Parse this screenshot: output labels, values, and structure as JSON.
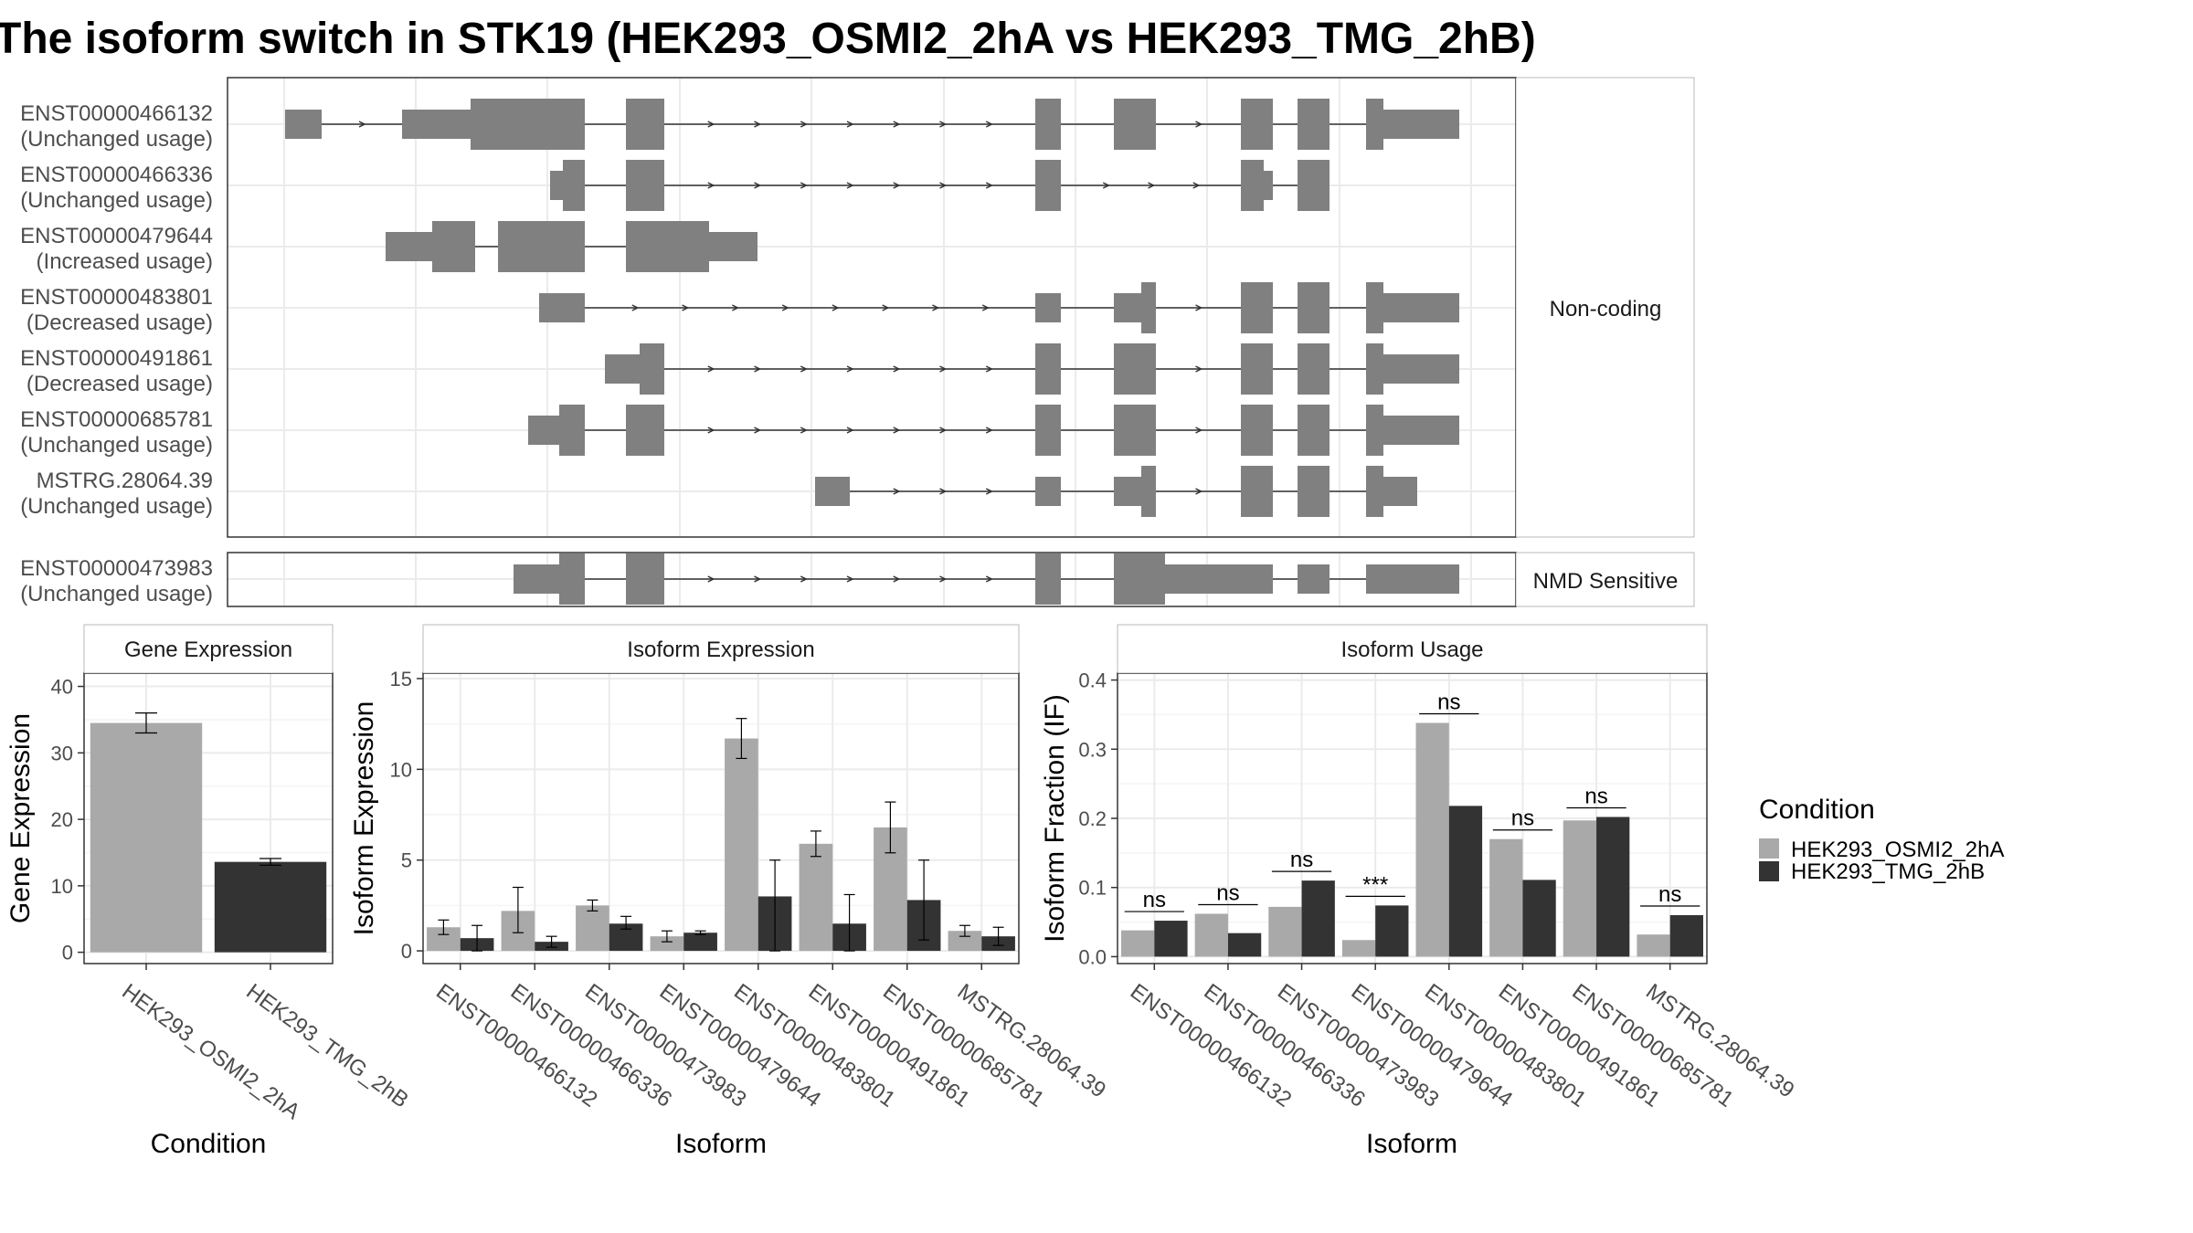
{
  "title": "The isoform switch in STK19 (HEK293_OSMI2_2hA vs HEK293_TMG_2hB)",
  "colors": {
    "exon": "#808080",
    "cond1": "#a9a9a9",
    "cond2": "#333333",
    "grid": "#ebebeb",
    "strip": "#f2f2f2",
    "panel_border": "#333333"
  },
  "structure": {
    "groups": [
      {
        "label": "Non-coding",
        "transcripts": [
          {
            "id": "ENST00000466132",
            "usage": "(Unchanged usage)"
          },
          {
            "id": "ENST00000466336",
            "usage": "(Unchanged usage)"
          },
          {
            "id": "ENST00000479644",
            "usage": "(Increased usage)"
          },
          {
            "id": "ENST00000483801",
            "usage": "(Decreased usage)"
          },
          {
            "id": "ENST00000491861",
            "usage": "(Decreased usage)"
          },
          {
            "id": "ENST00000685781",
            "usage": "(Unchanged usage)"
          },
          {
            "id": "MSTRG.28064.39",
            "usage": "(Unchanged usage)"
          }
        ]
      },
      {
        "label": "NMD Sensitive",
        "transcripts": [
          {
            "id": "ENST00000473983",
            "usage": "(Unchanged usage)"
          }
        ]
      }
    ]
  },
  "chart_data": [
    {
      "type": "bar",
      "title": "Gene Expression",
      "xlabel": "Condition",
      "ylabel": "Gene Expression",
      "categories": [
        "HEK293_OSMI2_2hA",
        "HEK293_TMG_2hB"
      ],
      "values": [
        34.5,
        13.6
      ],
      "errors": [
        [
          33.0,
          36.0
        ],
        [
          13.1,
          14.1
        ]
      ],
      "ylim": [
        -1.7,
        42
      ],
      "yticks": [
        0,
        10,
        20,
        30,
        40
      ]
    },
    {
      "type": "bar",
      "title": "Isoform Expression",
      "xlabel": "Isoform",
      "ylabel": "Isoform Expression",
      "categories": [
        "ENST00000466132",
        "ENST00000466336",
        "ENST00000473983",
        "ENST00000479644",
        "ENST00000483801",
        "ENST00000491861",
        "ENST00000685781",
        "MSTRG.28064.39"
      ],
      "series": [
        {
          "name": "HEK293_OSMI2_2hA",
          "values": [
            1.3,
            2.2,
            2.5,
            0.8,
            11.7,
            5.9,
            6.8,
            1.1
          ],
          "errors": [
            [
              0.9,
              1.7
            ],
            [
              1.0,
              3.5
            ],
            [
              2.2,
              2.8
            ],
            [
              0.5,
              1.1
            ],
            [
              10.6,
              12.8
            ],
            [
              5.2,
              6.6
            ],
            [
              5.4,
              8.2
            ],
            [
              0.8,
              1.4
            ]
          ]
        },
        {
          "name": "HEK293_TMG_2hB",
          "values": [
            0.7,
            0.5,
            1.5,
            1.0,
            3.0,
            1.5,
            2.8,
            0.8
          ],
          "errors": [
            [
              0.0,
              1.4
            ],
            [
              0.2,
              0.8
            ],
            [
              1.2,
              1.9
            ],
            [
              0.9,
              1.1
            ],
            [
              0.0,
              5.0
            ],
            [
              0.0,
              3.1
            ],
            [
              0.6,
              5.0
            ],
            [
              0.3,
              1.3
            ]
          ]
        }
      ],
      "ylim": [
        -0.7,
        15.3
      ],
      "yticks": [
        0,
        5,
        10,
        15
      ]
    },
    {
      "type": "bar",
      "title": "Isoform Usage",
      "xlabel": "Isoform",
      "ylabel": "Isoform Fraction (IF)",
      "categories": [
        "ENST00000466132",
        "ENST00000466336",
        "ENST00000473983",
        "ENST00000479644",
        "ENST00000483801",
        "ENST00000491861",
        "ENST00000685781",
        "MSTRG.28064.39"
      ],
      "series": [
        {
          "name": "HEK293_OSMI2_2hA",
          "values": [
            0.038,
            0.062,
            0.072,
            0.024,
            0.338,
            0.17,
            0.197,
            0.032
          ]
        },
        {
          "name": "HEK293_TMG_2hB",
          "values": [
            0.052,
            0.034,
            0.11,
            0.074,
            0.218,
            0.111,
            0.202,
            0.06
          ]
        }
      ],
      "significance": [
        "ns",
        "ns",
        "ns",
        "***",
        "ns",
        "ns",
        "ns",
        "ns"
      ],
      "ylim": [
        -0.01,
        0.41
      ],
      "yticks": [
        0.0,
        0.1,
        0.2,
        0.3,
        0.4
      ],
      "ytick_labels": [
        "0.0",
        "0.1",
        "0.2",
        "0.3",
        "0.4"
      ]
    }
  ],
  "legend": {
    "title": "Condition",
    "entries": [
      "HEK293_OSMI2_2hA",
      "HEK293_TMG_2hB"
    ]
  }
}
